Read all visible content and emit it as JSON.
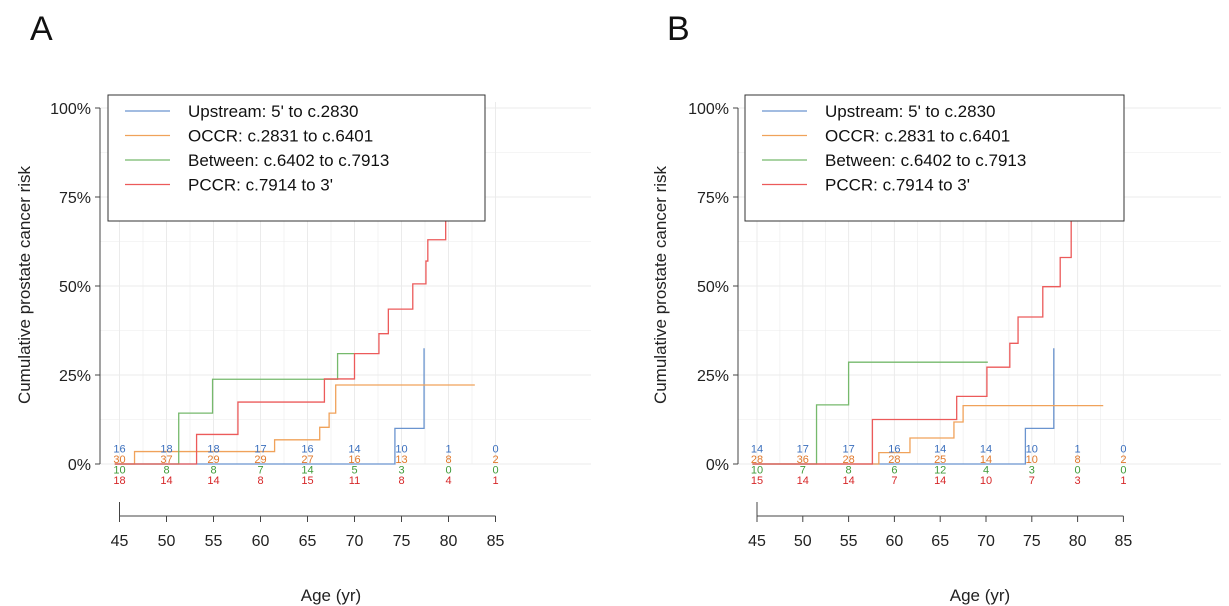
{
  "colors": {
    "Upstream": "#6a94cf",
    "OCCR": "#f0a25a",
    "Between": "#76b96c",
    "PCCR": "#ec5a5a",
    "risk_Upstream": "#3b6fbd",
    "risk_OCCR": "#e0782b",
    "risk_Between": "#3f9b39",
    "risk_PCCR": "#d62728",
    "grid": "#ebebeb",
    "axis": "#444444"
  },
  "chart_data": [
    {
      "panel": "A",
      "type": "line",
      "subtype": "step",
      "ylabel": "Cumulative prostate cancer risk",
      "xlabel": "Age (yr)",
      "yticks": [
        "0%",
        "25%",
        "50%",
        "75%",
        "100%"
      ],
      "xticks": [
        45,
        50,
        55,
        60,
        65,
        70,
        75,
        80,
        85
      ],
      "xlim": [
        45,
        85
      ],
      "ylim": [
        0,
        1
      ],
      "grid": true,
      "legend": {
        "position": "top-left",
        "entries": [
          {
            "key": "Upstream",
            "label": "Upstream: 5' to c.2830"
          },
          {
            "key": "OCCR",
            "label": "OCCR: c.2831 to c.6401"
          },
          {
            "key": "Between",
            "label": "Between: c.6402 to c.7913"
          },
          {
            "key": "PCCR",
            "label": "PCCR: c.7914 to 3'"
          }
        ]
      },
      "series": [
        {
          "key": "Upstream",
          "name": "Upstream: 5' to c.2830",
          "x": [
            44.5,
            74.3,
            77.4,
            77.4
          ],
          "y": [
            0,
            0.1,
            0.1,
            0.325
          ]
        },
        {
          "key": "OCCR",
          "name": "OCCR: c.2831 to c.6401",
          "x": [
            44.5,
            46.6,
            57.5,
            61.5,
            66.3,
            67.3,
            68.0,
            82.8
          ],
          "y": [
            0,
            0.035,
            0.035,
            0.068,
            0.103,
            0.143,
            0.222,
            0.222
          ]
        },
        {
          "key": "Between",
          "name": "Between: c.6402 to c.7913",
          "x": [
            44.5,
            51.3,
            54.9,
            68.2,
            70.0
          ],
          "y": [
            0,
            0.143,
            0.238,
            0.31,
            0.31
          ]
        },
        {
          "key": "PCCR",
          "name": "PCCR: c.7914 to 3'",
          "x": [
            44.5,
            53.2,
            57.6,
            66.8,
            70.0,
            72.6,
            73.6,
            76.2,
            77.6,
            77.8,
            79.3,
            79.7
          ],
          "y": [
            0,
            0.083,
            0.174,
            0.239,
            0.31,
            0.366,
            0.435,
            0.506,
            0.57,
            0.63,
            0.63,
            0.78
          ]
        }
      ],
      "risk_table": {
        "x": [
          45,
          50,
          55,
          60,
          65,
          70,
          75,
          80,
          85
        ],
        "rows": [
          {
            "key": "Upstream",
            "values": [
              "16",
              "18",
              "18",
              "17",
              "16",
              "14",
              "10",
              "1",
              "0"
            ]
          },
          {
            "key": "OCCR",
            "values": [
              "30",
              "37",
              "29",
              "29",
              "27",
              "16",
              "13",
              "8",
              "2"
            ]
          },
          {
            "key": "Between",
            "values": [
              "10",
              "8",
              "8",
              "7",
              "14",
              "5",
              "3",
              "0",
              "0"
            ]
          },
          {
            "key": "PCCR",
            "values": [
              "18",
              "14",
              "14",
              "8",
              "15",
              "11",
              "8",
              "4",
              "1"
            ]
          }
        ]
      }
    },
    {
      "panel": "B",
      "type": "line",
      "subtype": "step",
      "ylabel": "Cumulative prostate cancer risk",
      "xlabel": "Age (yr)",
      "yticks": [
        "0%",
        "25%",
        "50%",
        "75%",
        "100%"
      ],
      "xticks": [
        45,
        50,
        55,
        60,
        65,
        70,
        75,
        80,
        85
      ],
      "xlim": [
        45,
        85
      ],
      "ylim": [
        0,
        1
      ],
      "grid": true,
      "legend": {
        "position": "top-left",
        "entries": [
          {
            "key": "Upstream",
            "label": "Upstream: 5' to c.2830"
          },
          {
            "key": "OCCR",
            "label": "OCCR: c.2831 to c.6401"
          },
          {
            "key": "Between",
            "label": "Between: c.6402 to c.7913"
          },
          {
            "key": "PCCR",
            "label": "PCCR: c.7914 to 3'"
          }
        ]
      },
      "series": [
        {
          "key": "Upstream",
          "name": "Upstream: 5' to c.2830",
          "x": [
            44.5,
            74.3,
            77.4,
            77.4
          ],
          "y": [
            0,
            0.1,
            0.1,
            0.325
          ]
        },
        {
          "key": "OCCR",
          "name": "OCCR: c.2831 to c.6401",
          "x": [
            44.5,
            58.3,
            61.7,
            66.5,
            67.5,
            68.5,
            82.8
          ],
          "y": [
            0,
            0.032,
            0.073,
            0.118,
            0.164,
            0.164,
            0.164
          ]
        },
        {
          "key": "Between",
          "name": "Between: c.6402 to c.7913",
          "x": [
            44.5,
            51.5,
            55.0,
            70.2
          ],
          "y": [
            0,
            0.166,
            0.286,
            0.286
          ]
        },
        {
          "key": "PCCR",
          "name": "PCCR: c.7914 to 3'",
          "x": [
            44.5,
            57.6,
            66.8,
            70.1,
            72.6,
            73.5,
            74.4,
            76.2,
            78.1,
            79.3
          ],
          "y": [
            0,
            0.125,
            0.19,
            0.272,
            0.339,
            0.413,
            0.413,
            0.498,
            0.58,
            0.685
          ]
        }
      ],
      "risk_table": {
        "x": [
          45,
          50,
          55,
          60,
          65,
          70,
          75,
          80,
          85
        ],
        "rows": [
          {
            "key": "Upstream",
            "values": [
              "14",
              "17",
              "17",
              "16",
              "14",
              "14",
              "10",
              "1",
              "0"
            ]
          },
          {
            "key": "OCCR",
            "values": [
              "28",
              "36",
              "28",
              "28",
              "25",
              "14",
              "10",
              "8",
              "2"
            ]
          },
          {
            "key": "Between",
            "values": [
              "10",
              "7",
              "8",
              "6",
              "12",
              "4",
              "3",
              "0",
              "0"
            ]
          },
          {
            "key": "PCCR",
            "values": [
              "15",
              "14",
              "14",
              "7",
              "14",
              "10",
              "7",
              "3",
              "1"
            ]
          }
        ]
      }
    }
  ]
}
